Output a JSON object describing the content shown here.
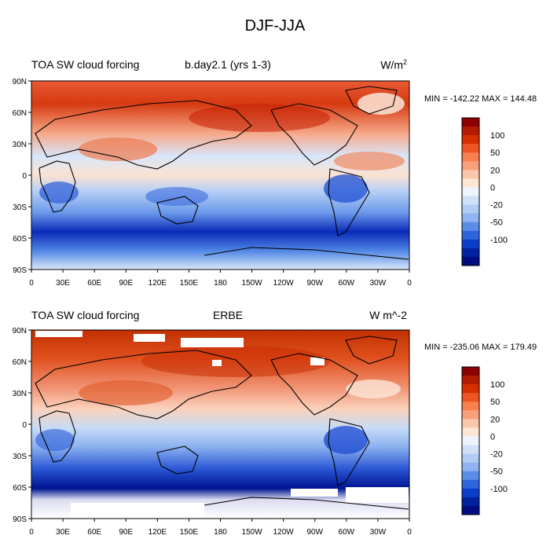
{
  "figure_title": "DJF-JJA",
  "panels": [
    {
      "left_label": "TOA SW cloud forcing",
      "center_label": "b.day2.1 (yrs 1-3)",
      "units": "W/m",
      "units_sup": "2",
      "stats": "MIN = -142.22 MAX = 144.48"
    },
    {
      "left_label": "TOA SW cloud forcing",
      "center_label": "ERBE",
      "units": "W m^-2",
      "units_sup": "",
      "stats": "MIN = -235.06 MAX = 179.49"
    }
  ],
  "lat_labels": [
    "90N",
    "60N",
    "30N",
    "0",
    "30S",
    "60S",
    "90S"
  ],
  "lon_labels": [
    "0",
    "30E",
    "60E",
    "90E",
    "120E",
    "150E",
    "180",
    "150W",
    "120W",
    "90W",
    "60W",
    "30W",
    "0"
  ],
  "colorbar": {
    "colors": [
      "#8b0000",
      "#b31b00",
      "#d63000",
      "#ee5522",
      "#f77f50",
      "#f9a07a",
      "#fbc7aa",
      "#fde6d4",
      "#eef4fd",
      "#cfe0f8",
      "#b0ccf4",
      "#8fb4ef",
      "#5b8de6",
      "#2f64dc",
      "#0b3ec8",
      "#0022a0",
      "#000c80"
    ],
    "tick_labels": [
      "100",
      "50",
      "20",
      "0",
      "-20",
      "-50",
      "-100"
    ]
  }
}
